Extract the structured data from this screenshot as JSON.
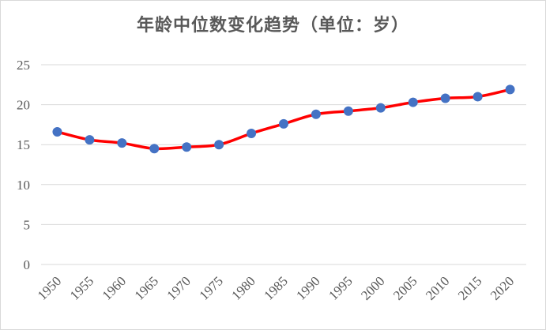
{
  "chart_data": {
    "type": "line",
    "title": "年龄中位数变化趋势（单位：岁）",
    "xlabel": "",
    "ylabel": "",
    "x": [
      1950,
      1955,
      1960,
      1965,
      1970,
      1975,
      1980,
      1985,
      1990,
      1995,
      2000,
      2005,
      2010,
      2015,
      2020
    ],
    "categories": [
      "1950",
      "1955",
      "1960",
      "1965",
      "1970",
      "1975",
      "1980",
      "1985",
      "1990",
      "1995",
      "2000",
      "2005",
      "2010",
      "2015",
      "2020"
    ],
    "series": [
      {
        "values": [
          16.6,
          15.6,
          15.2,
          14.5,
          14.7,
          15.0,
          16.4,
          17.6,
          18.8,
          19.2,
          19.6,
          20.3,
          20.8,
          21.0,
          21.9
        ]
      }
    ],
    "yticks": [
      "0",
      "5",
      "10",
      "15",
      "20",
      "25"
    ],
    "ylim": [
      0,
      25
    ],
    "grid": true,
    "legend": "none",
    "line_color": "#ff0000",
    "marker_color": "#4472c4",
    "gridline_color": "#d9d9d9"
  }
}
